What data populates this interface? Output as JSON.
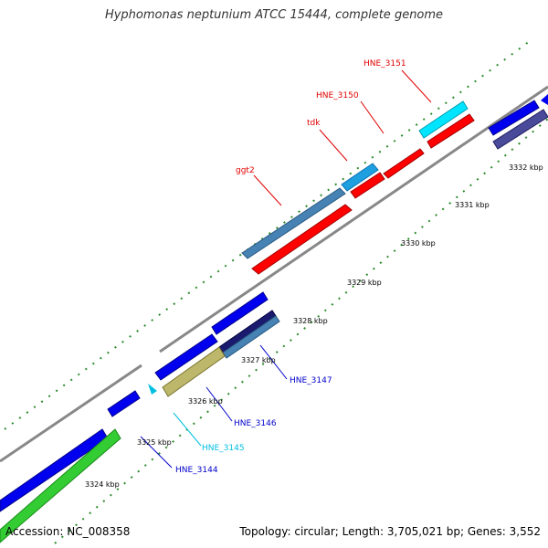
{
  "title": "Hyphomonas neptunium ATCC 15444, complete genome",
  "footer": {
    "accession": "Accession: NC_008358",
    "summary": "Topology: circular; Length: 3,705,021 bp; Genes: 3,552"
  },
  "scale": {
    "ticks": [
      "3324 kbp",
      "3325 kbp",
      "3326 kbp",
      "3327 kbp",
      "3328 kbp",
      "3329 kbp",
      "3330 kbp",
      "3331 kbp",
      "3332 kbp"
    ]
  },
  "gene_labels": [
    {
      "name": "ggt2",
      "color": "#e00000"
    },
    {
      "name": "tdk",
      "color": "#e00000"
    },
    {
      "name": "HNE_3150",
      "color": "#e00000"
    },
    {
      "name": "HNE_3151",
      "color": "#e00000"
    },
    {
      "name": "HNE_3147",
      "color": "#0000cc"
    },
    {
      "name": "HNE_3146",
      "color": "#0000cc"
    },
    {
      "name": "HNE_3145",
      "color": "#00bfe0"
    },
    {
      "name": "HNE_3144",
      "color": "#0000cc"
    }
  ],
  "colors": {
    "backbone": "#888888",
    "forward_cds": "#ff0000",
    "reverse_cds": "#0000ee",
    "tick": "#2e8b2e"
  }
}
